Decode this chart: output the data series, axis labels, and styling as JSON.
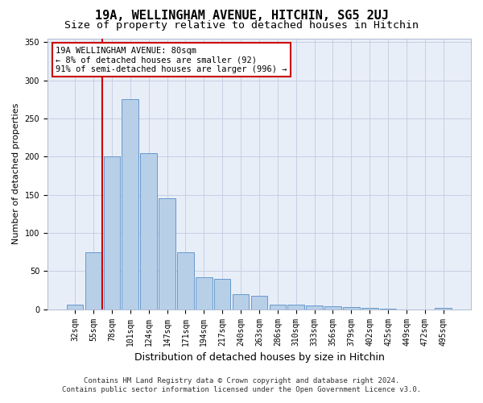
{
  "title_line1": "19A, WELLINGHAM AVENUE, HITCHIN, SG5 2UJ",
  "title_line2": "Size of property relative to detached houses in Hitchin",
  "xlabel": "Distribution of detached houses by size in Hitchin",
  "ylabel": "Number of detached properties",
  "categories": [
    "32sqm",
    "55sqm",
    "78sqm",
    "101sqm",
    "124sqm",
    "147sqm",
    "171sqm",
    "194sqm",
    "217sqm",
    "240sqm",
    "263sqm",
    "286sqm",
    "310sqm",
    "333sqm",
    "356sqm",
    "379sqm",
    "402sqm",
    "425sqm",
    "449sqm",
    "472sqm",
    "495sqm"
  ],
  "values": [
    6,
    75,
    200,
    275,
    205,
    145,
    75,
    42,
    40,
    20,
    18,
    6,
    6,
    5,
    4,
    3,
    2,
    1,
    0,
    0,
    2
  ],
  "bar_color": "#b8cfe8",
  "bar_edge_color": "#6699cc",
  "vline_color": "#cc0000",
  "vline_x_index": 2,
  "annotation_text": "19A WELLINGHAM AVENUE: 80sqm\n← 8% of detached houses are smaller (92)\n91% of semi-detached houses are larger (996) →",
  "annotation_box_edge_color": "#cc0000",
  "annotation_box_face_color": "#ffffff",
  "ylim": [
    0,
    355
  ],
  "yticks": [
    0,
    50,
    100,
    150,
    200,
    250,
    300,
    350
  ],
  "plot_bg_color": "#e8eef8",
  "title1_fontsize": 11,
  "title2_fontsize": 9.5,
  "xlabel_fontsize": 9,
  "ylabel_fontsize": 8,
  "tick_fontsize": 7,
  "footer_fontsize": 6.5,
  "annotation_fontsize": 7.5,
  "footer_line1": "Contains HM Land Registry data © Crown copyright and database right 2024.",
  "footer_line2": "Contains public sector information licensed under the Open Government Licence v3.0."
}
